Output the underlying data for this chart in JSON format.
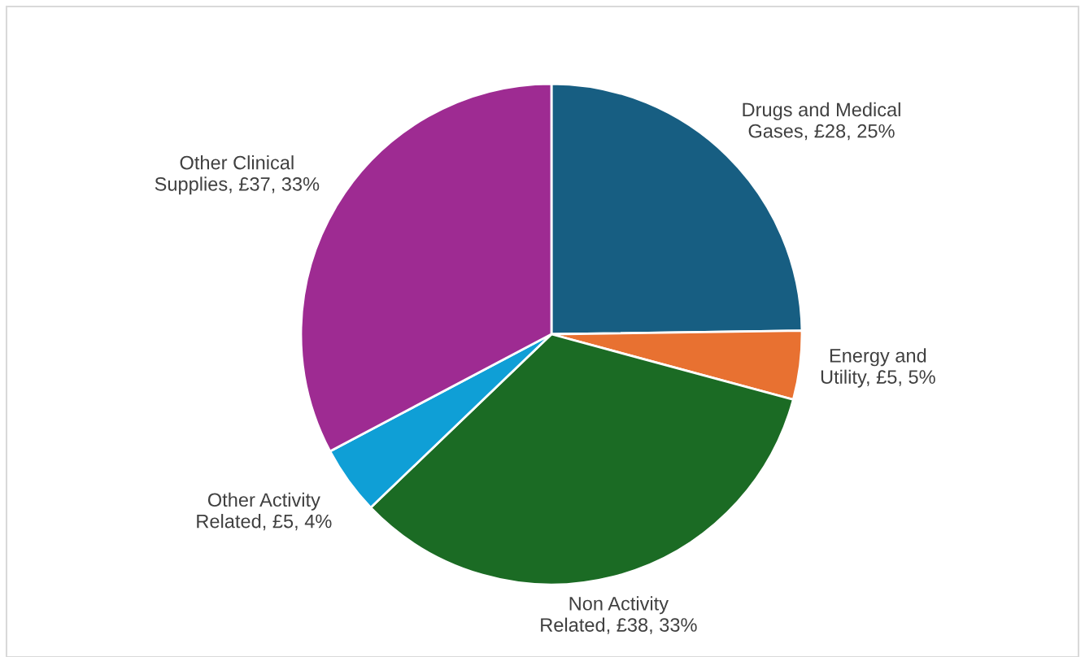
{
  "chart_data": {
    "type": "pie",
    "categories": [
      "Drugs and Medical Gases",
      "Energy and Utility",
      "Non Activity Related",
      "Other Activity Related",
      "Other Clinical Supplies"
    ],
    "values": [
      28,
      5,
      38,
      5,
      37
    ],
    "value_labels": [
      "£28, 25%",
      "£5, 5%",
      "£38, 33%",
      "£5, 4%",
      "£37, 33%"
    ],
    "colors": [
      "#175e82",
      "#e87131",
      "#1b6b24",
      "#0f9fd6",
      "#9e2b92"
    ],
    "legend": false
  }
}
